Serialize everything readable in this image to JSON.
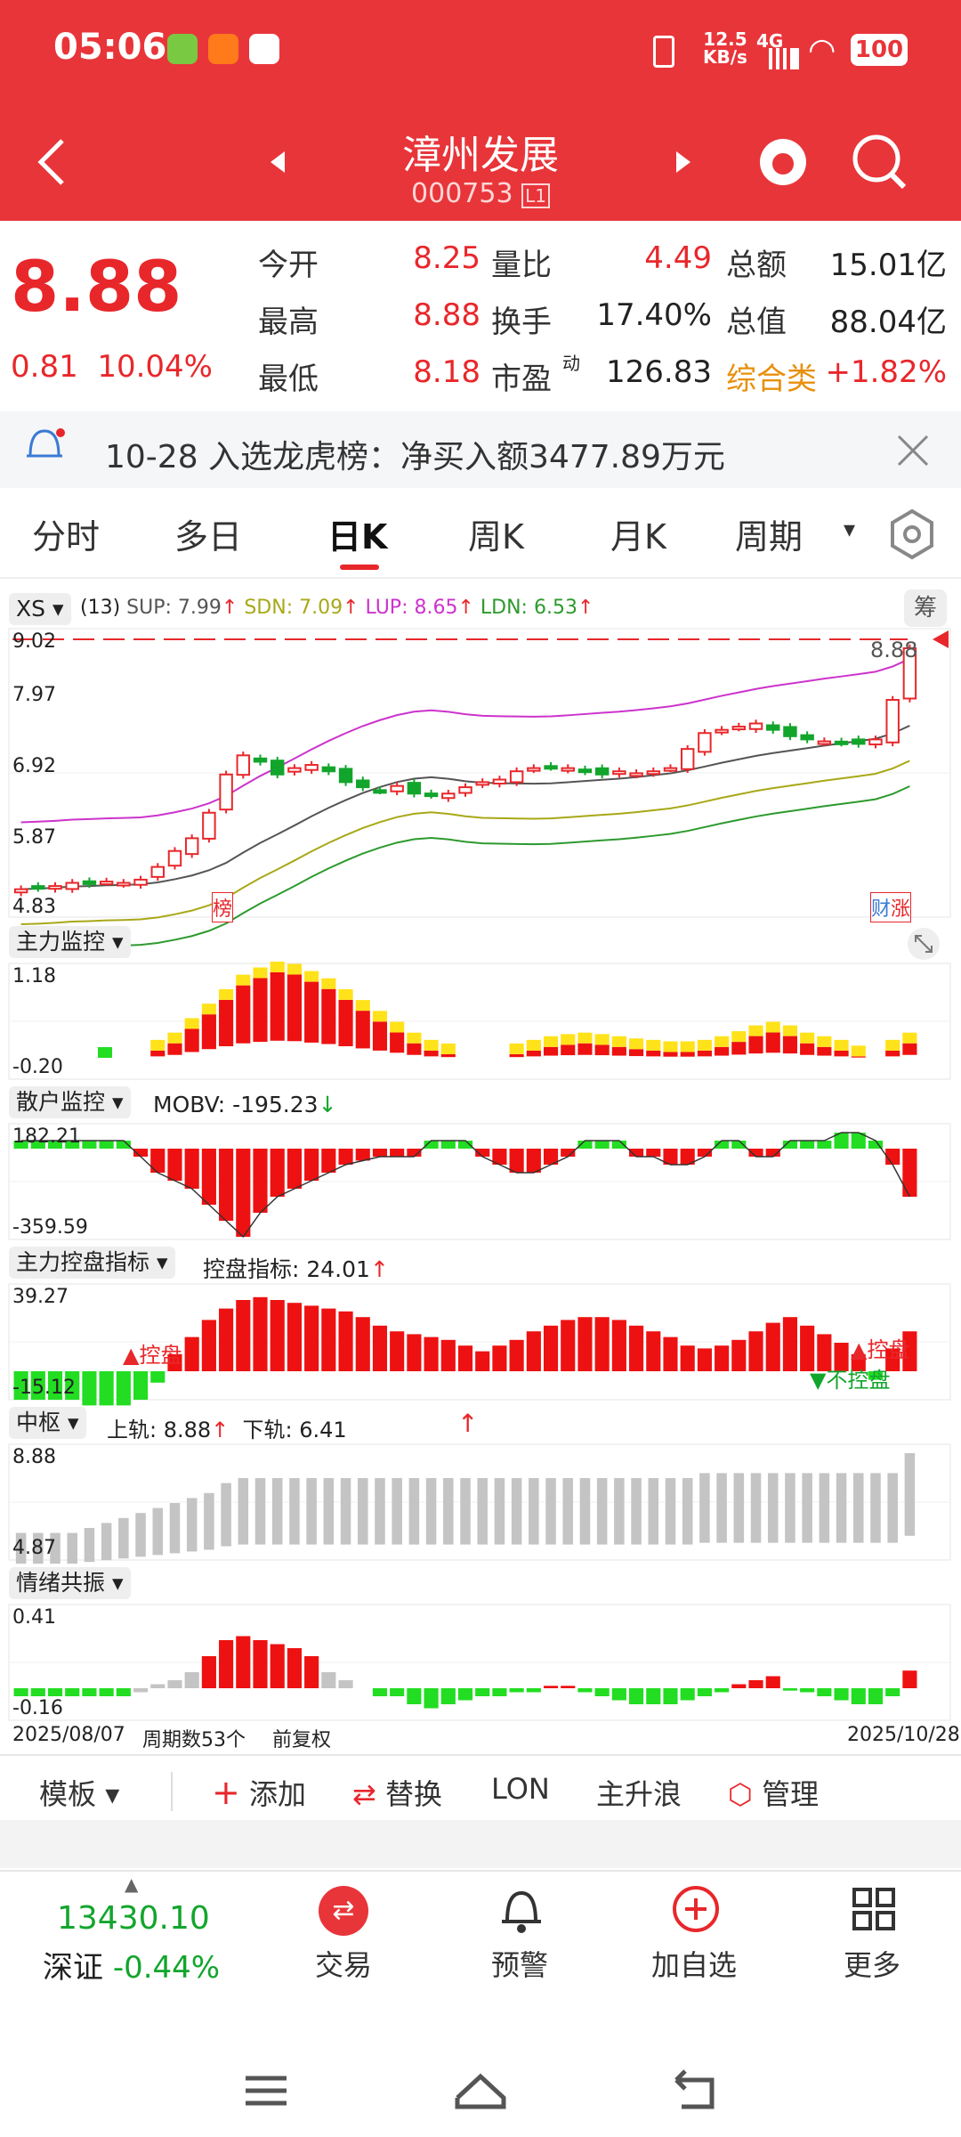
{
  "status": {
    "time": "05:06",
    "net_speed": "12.5",
    "net_unit": "KB/s",
    "signal": "4G",
    "battery": "100"
  },
  "header": {
    "name": "漳州发展",
    "code": "000753",
    "code_badge": "L1"
  },
  "quote": {
    "price": "8.88",
    "change": "0.81",
    "change_pct": "10.04%",
    "rows": [
      [
        {
          "label": "今开",
          "value": "8.25",
          "color": "red"
        },
        {
          "label": "量比",
          "value": "4.49",
          "color": "red"
        },
        {
          "label": "总额",
          "value": "15.01亿",
          "color": "dark"
        }
      ],
      [
        {
          "label": "最高",
          "value": "8.88",
          "color": "red"
        },
        {
          "label": "换手",
          "value": "17.40%",
          "color": "dark"
        },
        {
          "label": "总值",
          "value": "88.04亿",
          "color": "dark"
        }
      ],
      [
        {
          "label": "最低",
          "value": "8.18",
          "color": "red"
        },
        {
          "label": "市盈",
          "value": "126.83",
          "color": "dark"
        },
        {
          "label": "综合类",
          "value": "+1.82%",
          "color": "red"
        }
      ]
    ],
    "pe_sup": "动"
  },
  "notice": {
    "text": "10-28 入选龙虎榜：净买入额3477.89万元"
  },
  "tabs": [
    "分时",
    "多日",
    "日K",
    "周K",
    "月K",
    "周期"
  ],
  "active_tab": "日K",
  "main_chart": {
    "indicator": "XS",
    "params": "(13)",
    "sup": "SUP: 7.99",
    "sdn": "SDN: 7.09",
    "lup": "LUP: 8.65",
    "ldn": "LDN: 6.53",
    "chip_button": "筹",
    "y_ticks": [
      "9.02",
      "7.97",
      "6.92",
      "5.87",
      "4.83"
    ],
    "price_tag": "8.88",
    "marker_left": "榜",
    "marker_right": "财",
    "marker_right2": "涨",
    "colors": {
      "up": "#e8272b",
      "down": "#12a52c",
      "lup": "#cc33cc",
      "sup": "#555555",
      "sdn": "#a8a818",
      "ldn": "#2d9a2d"
    }
  },
  "ind1": {
    "title": "主力监控",
    "top": "1.18",
    "bottom": "-0.20"
  },
  "ind2": {
    "title": "散户监控",
    "label": "MOBV: -195.23",
    "top": "182.21",
    "bottom": "-359.59"
  },
  "ind3": {
    "title": "主力控盘指标",
    "label": "控盘指标: 24.01",
    "top": "39.27",
    "bottom": "-15.12",
    "mark1": "▲控盘",
    "mark2": "▼不控盘",
    "mark3": "▲控盘"
  },
  "ind4": {
    "title": "中枢",
    "upper": "上轨: 8.88",
    "lower": "下轨: 6.41",
    "top": "8.88",
    "bottom": "4.87"
  },
  "ind5": {
    "title": "情绪共振",
    "top": "0.41",
    "bottom": "-0.16"
  },
  "footer_axis": {
    "start": "2025/08/07",
    "periods": "周期数53个",
    "adjust": "前复权",
    "end": "2025/10/28"
  },
  "toolbar": {
    "template": "模板",
    "add": "添加",
    "replace": "替换",
    "lon": "LON",
    "wave": "主升浪",
    "manage": "管理"
  },
  "bottom": {
    "index_value": "13430.10",
    "index_name": "深证",
    "index_change": "-0.44%",
    "trade": "交易",
    "alert": "预警",
    "add_fav": "加自选",
    "more": "更多"
  },
  "chart_data": {
    "type": "candlestick",
    "ylim": [
      4.83,
      9.02
    ],
    "closes": [
      5.1,
      5.12,
      5.15,
      5.2,
      5.18,
      5.22,
      5.2,
      5.25,
      5.45,
      5.7,
      5.9,
      6.3,
      6.9,
      7.2,
      7.1,
      6.9,
      7.0,
      7.05,
      6.95,
      6.78,
      6.7,
      6.65,
      6.72,
      6.6,
      6.58,
      6.6,
      6.7,
      6.78,
      6.82,
      6.95,
      7.0,
      7.02,
      7.0,
      6.95,
      6.9,
      6.95,
      6.92,
      6.95,
      7.0,
      7.3,
      7.55,
      7.6,
      7.65,
      7.7,
      7.6,
      7.5,
      7.45,
      7.42,
      7.4,
      7.38,
      7.45,
      8.07,
      8.88
    ]
  }
}
